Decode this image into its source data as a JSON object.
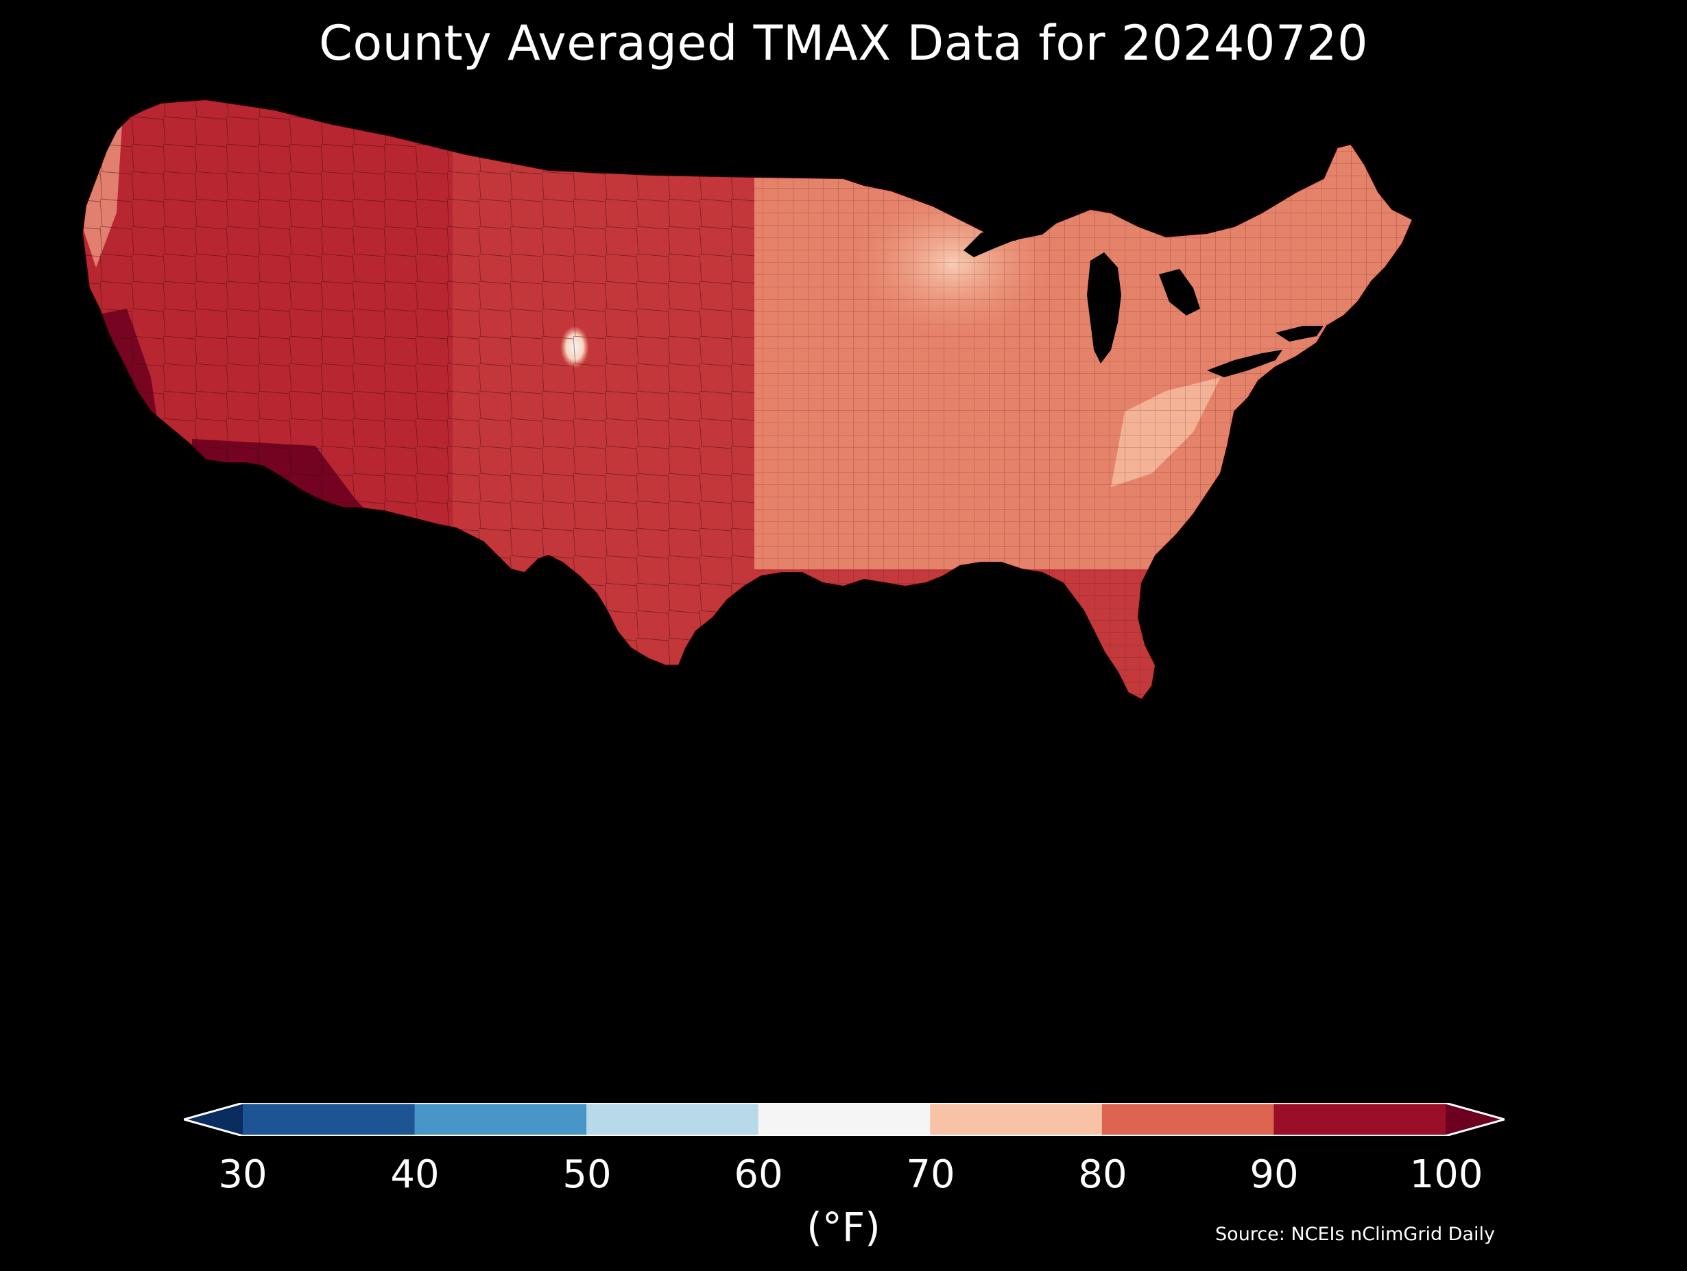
{
  "title": "County Averaged TMAX Data for 20240720",
  "colorbar": {
    "ticks": [
      "30",
      "40",
      "50",
      "60",
      "70",
      "80",
      "90",
      "100"
    ],
    "bins": [
      {
        "range": "30-40",
        "color": "#1c5494"
      },
      {
        "range": "40-50",
        "color": "#4896c8"
      },
      {
        "range": "50-60",
        "color": "#b8d9ea"
      },
      {
        "range": "60-70",
        "color": "#f5f5f5"
      },
      {
        "range": "70-80",
        "color": "#f8c2a6"
      },
      {
        "range": "80-90",
        "color": "#dd6550"
      },
      {
        "range": "90-100",
        "color": "#9a0f27"
      }
    ],
    "under_color": "#0a2c5e",
    "over_color": "#6b0020",
    "unit": "(°F)"
  },
  "source": "Source: NCEIs nClimGrid Daily",
  "colors": {
    "background": "#000000",
    "land_base": "#c43a3c",
    "hottest": "#6b0020",
    "hot": "#9a0f27",
    "warm": "#dd6550",
    "mild": "#f8c2a6",
    "cool": "#f5f5f5",
    "water": "#000000"
  },
  "chart_data": {
    "type": "heatmap",
    "title": "County Averaged TMAX Data for 20240720",
    "scale_min": 30,
    "scale_max": 100,
    "bin_edges": [
      30,
      40,
      50,
      60,
      70,
      80,
      90,
      100
    ],
    "extend": "both",
    "unit": "(°F)",
    "regions_shown": [
      "Contiguous United States counties"
    ]
  }
}
